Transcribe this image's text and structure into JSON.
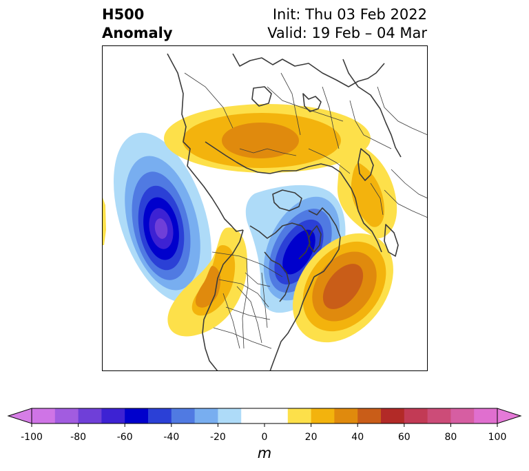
{
  "title": {
    "left_line1": "H500",
    "left_line2": "Anomaly",
    "right_line1": "Init: Thu 03 Feb 2022",
    "right_line2": "Valid: 19 Feb – 04 Mar"
  },
  "colorbar": {
    "unit": "m",
    "ticks": [
      "-100",
      "-80",
      "-60",
      "-40",
      "-20",
      "0",
      "20",
      "40",
      "60",
      "80",
      "100"
    ],
    "tick_values": [
      -100,
      -80,
      -60,
      -40,
      -20,
      0,
      20,
      40,
      60,
      80,
      100
    ],
    "bins": [
      -100,
      -90,
      -80,
      -70,
      -60,
      -50,
      -40,
      -30,
      -20,
      -10,
      10,
      20,
      30,
      40,
      50,
      60,
      70,
      80,
      90,
      100
    ],
    "colors": [
      "#cf74e6",
      "#a25ce0",
      "#6f3fd8",
      "#3d22d3",
      "#0000cc",
      "#2b40d6",
      "#507ae2",
      "#78aef0",
      "#aedbf8",
      "#ffffff",
      "#fde04a",
      "#f3b30d",
      "#e08a0d",
      "#c95d18",
      "#b22a27",
      "#c23a55",
      "#cc4c78",
      "#d65ea2",
      "#e06fcf"
    ],
    "under_color": "#d67ee6",
    "over_color": "#e57ad8"
  },
  "map": {
    "projection": "north-polar-stereographic",
    "region": "Northern Hemisphere",
    "features": [
      "coastlines",
      "country-borders",
      "state-borders"
    ]
  }
}
